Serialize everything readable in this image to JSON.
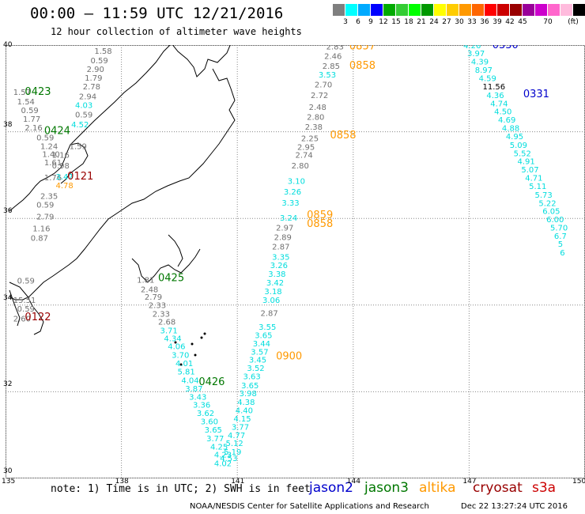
{
  "title": "00:00 — 11:59 UTC 12/21/2016",
  "subtitle": "12 hour collection of altimeter wave heights",
  "scale": {
    "colors": [
      "#7f7f7f",
      "#00ffff",
      "#00aaff",
      "#0000ff",
      "#00aa00",
      "#33cc33",
      "#00ff00",
      "#009900",
      "#ffff00",
      "#ffcc00",
      "#ff9900",
      "#ff6600",
      "#ff0000",
      "#cc0000",
      "#990000",
      "#990099",
      "#cc00cc",
      "#ff66cc",
      "#ffbbdd",
      "#000000"
    ],
    "ticks": [
      "3",
      "6",
      "9",
      "12",
      "15",
      "18",
      "21",
      "24",
      "27",
      "30",
      "33",
      "36",
      "39",
      "42",
      "45",
      "70"
    ],
    "unit": "(ft)"
  },
  "map": {
    "lon_labels": [
      "135",
      "138",
      "141",
      "144",
      "147",
      "150"
    ],
    "lat_labels": [
      "40",
      "38",
      "36",
      "34",
      "32",
      "30"
    ],
    "lon_range": [
      135,
      150
    ],
    "lat_range": [
      30,
      40
    ]
  },
  "series_colors": {
    "jason2": "#0000cc",
    "jason3": "#007700",
    "altika": "#ff9900",
    "cryosat": "#990000",
    "s3a": "#cc0000",
    "gray": "#707070",
    "cyan": "#00dddd"
  },
  "labels": [
    {
      "t": "1.58",
      "c": "gray",
      "lon": 137.3,
      "lat": 39.8
    },
    {
      "t": "0.59",
      "c": "gray",
      "lon": 137.2,
      "lat": 39.58
    },
    {
      "t": "2.90",
      "c": "gray",
      "lon": 137.1,
      "lat": 39.38
    },
    {
      "t": "1.79",
      "c": "gray",
      "lon": 137.05,
      "lat": 39.18
    },
    {
      "t": "2.78",
      "c": "gray",
      "lon": 137.0,
      "lat": 38.98
    },
    {
      "t": "2.94",
      "c": "gray",
      "lon": 136.9,
      "lat": 38.75
    },
    {
      "t": "4.03",
      "c": "cyan",
      "lon": 136.8,
      "lat": 38.55
    },
    {
      "t": "0.59",
      "c": "gray",
      "lon": 136.8,
      "lat": 38.33
    },
    {
      "t": "4.52",
      "c": "cyan",
      "lon": 136.7,
      "lat": 38.1
    },
    {
      "t": "1.59",
      "c": "gray",
      "lon": 136.65,
      "lat": 37.6
    },
    {
      "t": "1.57",
      "c": "gray",
      "lon": 135.2,
      "lat": 38.85
    },
    {
      "t": "1.54",
      "c": "gray",
      "lon": 135.3,
      "lat": 38.63
    },
    {
      "t": "0.59",
      "c": "gray",
      "lon": 135.4,
      "lat": 38.43
    },
    {
      "t": "1.77",
      "c": "gray",
      "lon": 135.45,
      "lat": 38.23
    },
    {
      "t": "2.16",
      "c": "gray",
      "lon": 135.5,
      "lat": 38.03
    },
    {
      "t": "0.59",
      "c": "gray",
      "lon": 135.8,
      "lat": 37.8
    },
    {
      "t": "1.24",
      "c": "gray",
      "lon": 135.9,
      "lat": 37.6
    },
    {
      "t": "1.40",
      "c": "gray",
      "lon": 135.95,
      "lat": 37.42
    },
    {
      "t": "1.61",
      "c": "gray",
      "lon": 136.0,
      "lat": 37.23
    },
    {
      "t": "1.76",
      "c": "gray",
      "lon": 136.0,
      "lat": 36.88
    },
    {
      "t": "2.35",
      "c": "gray",
      "lon": 135.9,
      "lat": 36.45
    },
    {
      "t": "0.59",
      "c": "gray",
      "lon": 135.8,
      "lat": 36.25
    },
    {
      "t": "2.79",
      "c": "gray",
      "lon": 135.8,
      "lat": 35.98
    },
    {
      "t": "1.16",
      "c": "gray",
      "lon": 135.7,
      "lat": 35.7
    },
    {
      "t": "0.87",
      "c": "gray",
      "lon": 135.65,
      "lat": 35.48
    },
    {
      "t": "0.59",
      "c": "gray",
      "lon": 135.3,
      "lat": 34.5
    },
    {
      "t": "0.59",
      "c": "gray",
      "lon": 135.3,
      "lat": 33.85
    },
    {
      "t": "2.60",
      "c": "gray",
      "lon": 135.2,
      "lat": 33.62
    },
    {
      "t": "0.98",
      "c": "gray",
      "lon": 136.2,
      "lat": 37.15
    },
    {
      "t": "1.16",
      "c": "green",
      "lon": 136.2,
      "lat": 37.4
    },
    {
      "t": "3.47",
      "c": "cyan",
      "lon": 136.3,
      "lat": 36.9
    },
    {
      "t": "4.78",
      "c": "altika",
      "lon": 136.3,
      "lat": 36.7
    },
    {
      "t": "15.51",
      "c": "green",
      "lon": 135.2,
      "lat": 34.05
    },
    {
      "t": "1.81",
      "c": "gray",
      "lon": 138.4,
      "lat": 34.52
    },
    {
      "t": "2.48",
      "c": "gray",
      "lon": 138.5,
      "lat": 34.3
    },
    {
      "t": "2.79",
      "c": "gray",
      "lon": 138.6,
      "lat": 34.12
    },
    {
      "t": "2.33",
      "c": "gray",
      "lon": 138.7,
      "lat": 33.93
    },
    {
      "t": "2.33",
      "c": "gray",
      "lon": 138.8,
      "lat": 33.73
    },
    {
      "t": "2.68",
      "c": "gray",
      "lon": 138.95,
      "lat": 33.55
    },
    {
      "t": "3.71",
      "c": "cyan",
      "lon": 139.0,
      "lat": 33.35
    },
    {
      "t": "4.34",
      "c": "cyan",
      "lon": 139.1,
      "lat": 33.17
    },
    {
      "t": "4.06",
      "c": "cyan",
      "lon": 139.2,
      "lat": 32.98
    },
    {
      "t": "3.70",
      "c": "cyan",
      "lon": 139.3,
      "lat": 32.78
    },
    {
      "t": "4.01",
      "c": "cyan",
      "lon": 139.4,
      "lat": 32.59
    },
    {
      "t": "5.81",
      "c": "cyan",
      "lon": 139.45,
      "lat": 32.4
    },
    {
      "t": "4.04",
      "c": "cyan",
      "lon": 139.55,
      "lat": 32.2
    },
    {
      "t": "3.87",
      "c": "cyan",
      "lon": 139.65,
      "lat": 32.01
    },
    {
      "t": "3.43",
      "c": "cyan",
      "lon": 139.75,
      "lat": 31.82
    },
    {
      "t": "3.36",
      "c": "cyan",
      "lon": 139.85,
      "lat": 31.63
    },
    {
      "t": "3.62",
      "c": "cyan",
      "lon": 139.95,
      "lat": 31.44
    },
    {
      "t": "3.60",
      "c": "cyan",
      "lon": 140.05,
      "lat": 31.25
    },
    {
      "t": "3.65",
      "c": "cyan",
      "lon": 140.15,
      "lat": 31.06
    },
    {
      "t": "3.77",
      "c": "cyan",
      "lon": 140.2,
      "lat": 30.86
    },
    {
      "t": "4.25",
      "c": "cyan",
      "lon": 140.3,
      "lat": 30.67
    },
    {
      "t": "4.23",
      "c": "cyan",
      "lon": 140.4,
      "lat": 30.48
    },
    {
      "t": "4.02",
      "c": "cyan",
      "lon": 140.4,
      "lat": 30.28
    },
    {
      "t": "4.53",
      "c": "cyan",
      "lon": 140.55,
      "lat": 30.4
    },
    {
      "t": "5.19",
      "c": "cyan",
      "lon": 140.65,
      "lat": 30.55
    },
    {
      "t": "5.12",
      "c": "cyan",
      "lon": 140.7,
      "lat": 30.75
    },
    {
      "t": "4.77",
      "c": "cyan",
      "lon": 140.75,
      "lat": 30.93
    },
    {
      "t": "3.77",
      "c": "cyan",
      "lon": 140.85,
      "lat": 31.12
    },
    {
      "t": "4.15",
      "c": "cyan",
      "lon": 140.9,
      "lat": 31.31
    },
    {
      "t": "4.40",
      "c": "cyan",
      "lon": 140.95,
      "lat": 31.51
    },
    {
      "t": "4.38",
      "c": "cyan",
      "lon": 141.0,
      "lat": 31.7
    },
    {
      "t": "3.98",
      "c": "cyan",
      "lon": 141.05,
      "lat": 31.9
    },
    {
      "t": "3.65",
      "c": "cyan",
      "lon": 141.1,
      "lat": 32.08
    },
    {
      "t": "3.63",
      "c": "cyan",
      "lon": 141.15,
      "lat": 32.29
    },
    {
      "t": "3.52",
      "c": "cyan",
      "lon": 141.25,
      "lat": 32.48
    },
    {
      "t": "3.45",
      "c": "cyan",
      "lon": 141.3,
      "lat": 32.67
    },
    {
      "t": "3.57",
      "c": "cyan",
      "lon": 141.35,
      "lat": 32.86
    },
    {
      "t": "3.44",
      "c": "cyan",
      "lon": 141.4,
      "lat": 33.05
    },
    {
      "t": "3.65",
      "c": "cyan",
      "lon": 141.45,
      "lat": 33.24
    },
    {
      "t": "3.55",
      "c": "cyan",
      "lon": 141.55,
      "lat": 33.43
    },
    {
      "t": "2.87",
      "c": "gray",
      "lon": 141.6,
      "lat": 33.75
    },
    {
      "t": "3.06",
      "c": "cyan",
      "lon": 141.65,
      "lat": 34.05
    },
    {
      "t": "3.18",
      "c": "cyan",
      "lon": 141.7,
      "lat": 34.25
    },
    {
      "t": "3.42",
      "c": "cyan",
      "lon": 141.75,
      "lat": 34.45
    },
    {
      "t": "3.38",
      "c": "cyan",
      "lon": 141.8,
      "lat": 34.65
    },
    {
      "t": "3.26",
      "c": "cyan",
      "lon": 141.85,
      "lat": 34.85
    },
    {
      "t": "3.35",
      "c": "cyan",
      "lon": 141.9,
      "lat": 35.05
    },
    {
      "t": "2.87",
      "c": "gray",
      "lon": 141.9,
      "lat": 35.28
    },
    {
      "t": "2.89",
      "c": "gray",
      "lon": 141.95,
      "lat": 35.5
    },
    {
      "t": "2.97",
      "c": "gray",
      "lon": 142.0,
      "lat": 35.72
    },
    {
      "t": "3.24",
      "c": "cyan",
      "lon": 142.1,
      "lat": 35.95
    },
    {
      "t": "3.33",
      "c": "cyan",
      "lon": 142.15,
      "lat": 36.3
    },
    {
      "t": "3.26",
      "c": "cyan",
      "lon": 142.2,
      "lat": 36.55
    },
    {
      "t": "3.10",
      "c": "cyan",
      "lon": 142.3,
      "lat": 36.8
    },
    {
      "t": "2.80",
      "c": "gray",
      "lon": 142.4,
      "lat": 37.15
    },
    {
      "t": "2.74",
      "c": "gray",
      "lon": 142.5,
      "lat": 37.4
    },
    {
      "t": "2.95",
      "c": "gray",
      "lon": 142.55,
      "lat": 37.58
    },
    {
      "t": "2.25",
      "c": "gray",
      "lon": 142.65,
      "lat": 37.78
    },
    {
      "t": "2.38",
      "c": "gray",
      "lon": 142.75,
      "lat": 38.05
    },
    {
      "t": "2.80",
      "c": "gray",
      "lon": 142.8,
      "lat": 38.28
    },
    {
      "t": "2.48",
      "c": "gray",
      "lon": 142.85,
      "lat": 38.5
    },
    {
      "t": "2.72",
      "c": "gray",
      "lon": 142.9,
      "lat": 38.78
    },
    {
      "t": "2.70",
      "c": "gray",
      "lon": 143.0,
      "lat": 39.02
    },
    {
      "t": "3.53",
      "c": "cyan",
      "lon": 143.1,
      "lat": 39.25
    },
    {
      "t": "2.85",
      "c": "gray",
      "lon": 143.2,
      "lat": 39.45
    },
    {
      "t": "2.46",
      "c": "gray",
      "lon": 143.25,
      "lat": 39.68
    },
    {
      "t": "2.83",
      "c": "gray",
      "lon": 143.3,
      "lat": 39.9
    },
    {
      "t": "4.26",
      "c": "cyan",
      "lon": 146.85,
      "lat": 39.93
    },
    {
      "t": "3.97",
      "c": "cyan",
      "lon": 146.95,
      "lat": 39.74
    },
    {
      "t": "4.39",
      "c": "cyan",
      "lon": 147.05,
      "lat": 39.55
    },
    {
      "t": "8.97",
      "c": "cyan",
      "lon": 147.15,
      "lat": 39.36
    },
    {
      "t": "4.59",
      "c": "cyan",
      "lon": 147.25,
      "lat": 39.17
    },
    {
      "t": "11.56",
      "c": "black",
      "lon": 147.35,
      "lat": 38.98
    },
    {
      "t": "4.36",
      "c": "cyan",
      "lon": 147.45,
      "lat": 38.78
    },
    {
      "t": "4.74",
      "c": "cyan",
      "lon": 147.55,
      "lat": 38.59
    },
    {
      "t": "4.50",
      "c": "cyan",
      "lon": 147.65,
      "lat": 38.4
    },
    {
      "t": "4.69",
      "c": "cyan",
      "lon": 147.75,
      "lat": 38.21
    },
    {
      "t": "4.88",
      "c": "cyan",
      "lon": 147.85,
      "lat": 38.02
    },
    {
      "t": "4.95",
      "c": "cyan",
      "lon": 147.95,
      "lat": 37.83
    },
    {
      "t": "5.09",
      "c": "cyan",
      "lon": 148.05,
      "lat": 37.63
    },
    {
      "t": "5.52",
      "c": "cyan",
      "lon": 148.15,
      "lat": 37.44
    },
    {
      "t": "4.91",
      "c": "cyan",
      "lon": 148.25,
      "lat": 37.25
    },
    {
      "t": "5.07",
      "c": "cyan",
      "lon": 148.35,
      "lat": 37.06
    },
    {
      "t": "4.71",
      "c": "cyan",
      "lon": 148.45,
      "lat": 36.87
    },
    {
      "t": "5.11",
      "c": "cyan",
      "lon": 148.55,
      "lat": 36.68
    },
    {
      "t": "5.73",
      "c": "cyan",
      "lon": 148.7,
      "lat": 36.48
    },
    {
      "t": "5.22",
      "c": "cyan",
      "lon": 148.8,
      "lat": 36.29
    },
    {
      "t": "6.05",
      "c": "cyan",
      "lon": 148.9,
      "lat": 36.1
    },
    {
      "t": "6.00",
      "c": "cyan",
      "lon": 149.0,
      "lat": 35.91
    },
    {
      "t": "5.70",
      "c": "cyan",
      "lon": 149.1,
      "lat": 35.72
    },
    {
      "t": "6.7",
      "c": "cyan",
      "lon": 149.2,
      "lat": 35.53
    },
    {
      "t": "5",
      "c": "cyan",
      "lon": 149.3,
      "lat": 35.35
    },
    {
      "t": "6",
      "c": "cyan",
      "lon": 149.35,
      "lat": 35.15
    }
  ],
  "passes": [
    {
      "t": "0423",
      "c": "jason3",
      "lon": 135.5,
      "lat": 38.85
    },
    {
      "t": "0424",
      "c": "jason3",
      "lon": 136.0,
      "lat": 37.95
    },
    {
      "t": "0121",
      "c": "cryosat",
      "lon": 136.6,
      "lat": 36.9
    },
    {
      "t": "0122",
      "c": "cryosat",
      "lon": 135.5,
      "lat": 33.65
    },
    {
      "t": "0425",
      "c": "jason3",
      "lon": 138.95,
      "lat": 34.55
    },
    {
      "t": "0426",
      "c": "jason3",
      "lon": 140.0,
      "lat": 32.15
    },
    {
      "t": "0900",
      "c": "altika",
      "lon": 142.0,
      "lat": 32.75
    },
    {
      "t": "0859",
      "c": "altika",
      "lon": 142.8,
      "lat": 36.0
    },
    {
      "t": "0858",
      "c": "altika",
      "lon": 142.8,
      "lat": 35.8
    },
    {
      "t": "0858",
      "c": "altika",
      "lon": 143.4,
      "lat": 37.85
    },
    {
      "t": "0858",
      "c": "altika",
      "lon": 143.9,
      "lat": 39.45
    },
    {
      "t": "0857",
      "c": "altika",
      "lon": 143.9,
      "lat": 39.9
    },
    {
      "t": "0330",
      "c": "jason2",
      "lon": 147.6,
      "lat": 39.93
    },
    {
      "t": "0331",
      "c": "jason2",
      "lon": 148.4,
      "lat": 38.8
    }
  ],
  "footer": {
    "note": "note: 1) Time is in UTC; 2) SWH is in feet",
    "sats": [
      {
        "label": "jason2",
        "c": "jason2"
      },
      {
        "label": "jason3",
        "c": "jason3"
      },
      {
        "label": "altika",
        "c": "altika"
      },
      {
        "label": "cryosat",
        "c": "cryosat"
      },
      {
        "label": "s3a",
        "c": "s3a"
      }
    ],
    "credit": "NOAA/NESDIS Center for Satellite Applications and Research",
    "stamp": "Dec 22 13:27:24 UTC 2016"
  }
}
